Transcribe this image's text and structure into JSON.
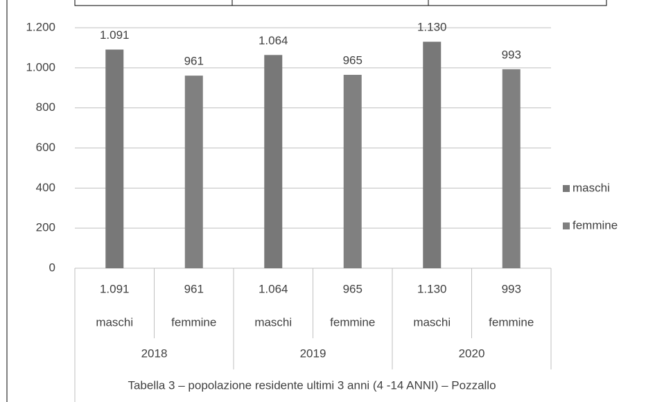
{
  "chart_data": {
    "type": "bar",
    "title": "Tabella 3 – popolazione residente ultimi 3 anni (4 -14 ANNI) – Pozzallo",
    "categories": [
      "maschi",
      "femmine",
      "maschi",
      "femmine",
      "maschi",
      "femmine"
    ],
    "groups": [
      "2018",
      "2019",
      "2020"
    ],
    "series": [
      {
        "name": "maschi",
        "color": "#787878",
        "values": [
          1091,
          null,
          1064,
          null,
          1130,
          null
        ],
        "value_labels": [
          "1.091",
          null,
          "1.064",
          null,
          "1.130",
          null
        ]
      },
      {
        "name": "femmine",
        "color": "#808080",
        "values": [
          null,
          961,
          null,
          965,
          null,
          993
        ],
        "value_labels": [
          null,
          "961",
          null,
          "965",
          null,
          "993"
        ]
      }
    ],
    "ylim": [
      0,
      1200
    ],
    "yticks": [
      0,
      200,
      400,
      600,
      800,
      {
        "value": 1000,
        "label": "1.000"
      },
      {
        "value": 1200,
        "label": "1.200"
      }
    ],
    "grid": true,
    "legend": "right"
  }
}
